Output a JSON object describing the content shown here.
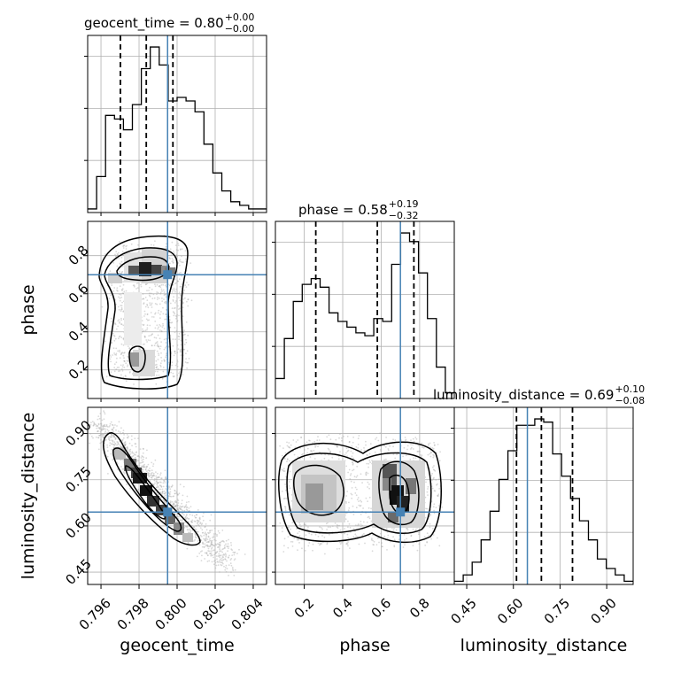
{
  "chart_data": {
    "type": "corner",
    "parameters": [
      "geocent_time",
      "phase",
      "luminosity_distance"
    ],
    "truths": {
      "geocent_time": 0.7995,
      "phase": 0.7,
      "luminosity_distance": 0.645
    },
    "colors": {
      "truth": "#4682b4",
      "hist": "#000000",
      "grid": "#b0b0b0",
      "scatter": "#aaaaaa"
    },
    "titles": [
      {
        "param": "geocent_time",
        "text": "geocent_time = 0.80",
        "upper": "+0.00",
        "lower": "−0.00"
      },
      {
        "param": "phase",
        "text": "phase = 0.58",
        "upper": "+0.19",
        "lower": "−0.32"
      },
      {
        "param": "luminosity_distance",
        "text": "luminosity_distance = 0.69",
        "upper": "+0.10",
        "lower": "−0.08"
      }
    ],
    "axes": {
      "geocent_time": {
        "range": [
          0.7953,
          0.8047
        ],
        "ticks": [
          0.796,
          0.798,
          0.8,
          0.802,
          0.804
        ],
        "tick_labels": [
          "0.796",
          "0.798",
          "0.800",
          "0.802",
          "0.804"
        ]
      },
      "phase": {
        "range": [
          0.05,
          0.98
        ],
        "ticks": [
          0.2,
          0.4,
          0.6,
          0.8
        ],
        "tick_labels": [
          "0.2",
          "0.4",
          "0.6",
          "0.8"
        ]
      },
      "luminosity_distance": {
        "range": [
          0.41,
          0.985
        ],
        "ticks": [
          0.45,
          0.6,
          0.75,
          0.9
        ],
        "tick_labels": [
          "0.45",
          "0.60",
          "0.75",
          "0.90"
        ]
      }
    },
    "quantiles": {
      "geocent_time": [
        0.79702,
        0.79838,
        0.79978
      ],
      "phase": [
        0.26,
        0.58,
        0.77
      ],
      "luminosity_distance": [
        0.61,
        0.69,
        0.79
      ]
    },
    "histograms": {
      "geocent_time": [
        1,
        10,
        27,
        26,
        23,
        30,
        40,
        46,
        41,
        31,
        32,
        31,
        28,
        19,
        11,
        6,
        3,
        2,
        1,
        1
      ],
      "phase": [
        7,
        21,
        34,
        40,
        42,
        39,
        30,
        27,
        25,
        23,
        22,
        28,
        27,
        47,
        58,
        55,
        44,
        28,
        11,
        2
      ],
      "luminosity_distance": [
        1,
        3,
        7,
        14,
        23,
        33,
        42,
        50,
        50,
        52,
        51,
        41,
        34,
        27,
        20,
        14,
        8,
        5,
        3,
        1
      ]
    },
    "pairs": [
      {
        "x": "geocent_time",
        "y": "phase"
      },
      {
        "x": "geocent_time",
        "y": "luminosity_distance"
      },
      {
        "x": "phase",
        "y": "luminosity_distance"
      }
    ],
    "xlabels": [
      "geocent_time",
      "phase",
      "luminosity_distance"
    ],
    "ylabels": [
      "",
      "phase",
      "luminosity_distance"
    ]
  }
}
